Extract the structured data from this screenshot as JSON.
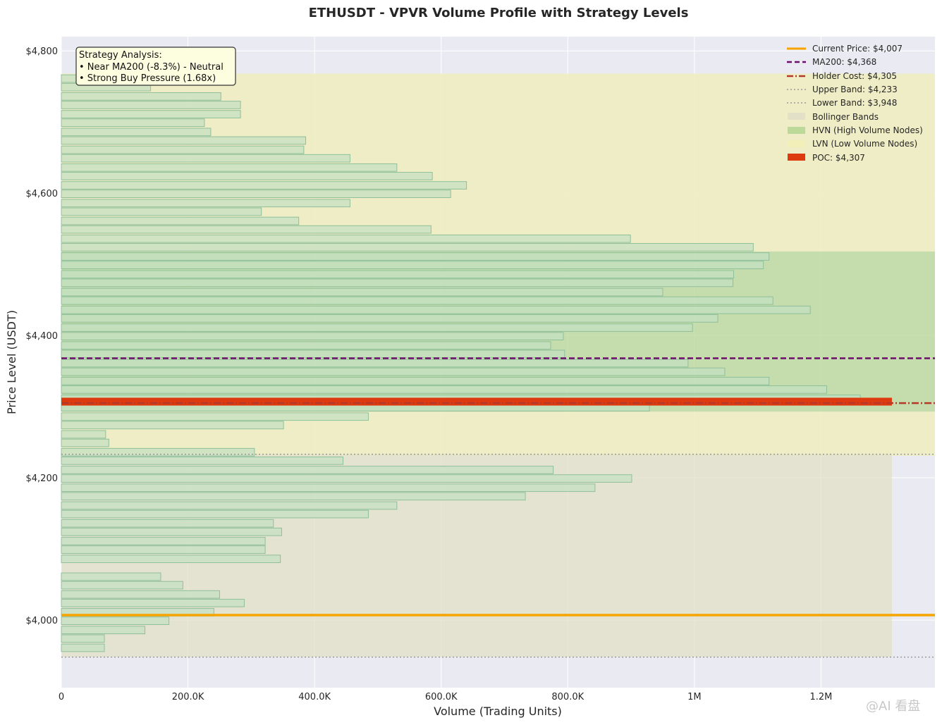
{
  "chart_data": {
    "type": "bar",
    "orientation": "horizontal",
    "title": "ETHUSDT - VPVR Volume Profile with Strategy Levels",
    "xlabel": "Volume (Trading Units)",
    "ylabel": "Price Level (USDT)",
    "xlim": [
      0,
      1380000
    ],
    "ylim": [
      3905,
      4820
    ],
    "x_ticks": [
      {
        "value": 0,
        "label": "0"
      },
      {
        "value": 200000,
        "label": "200.0K"
      },
      {
        "value": 400000,
        "label": "400.0K"
      },
      {
        "value": 600000,
        "label": "600.0K"
      },
      {
        "value": 800000,
        "label": "800.0K"
      },
      {
        "value": 1000000,
        "label": "1M"
      },
      {
        "value": 1200000,
        "label": "1.2M"
      }
    ],
    "y_ticks": [
      {
        "value": 4000,
        "label": "$4,000"
      },
      {
        "value": 4200,
        "label": "$4,200"
      },
      {
        "value": 4400,
        "label": "$4,400"
      },
      {
        "value": 4600,
        "label": "$4,600"
      },
      {
        "value": 4800,
        "label": "$4,800"
      }
    ],
    "grid": true,
    "bin_size": 12.5,
    "bins": [
      {
        "price": 3961,
        "volume": 68000
      },
      {
        "price": 3974,
        "volume": 68000
      },
      {
        "price": 3986,
        "volume": 132000
      },
      {
        "price": 3999,
        "volume": 170000
      },
      {
        "price": 4011,
        "volume": 241000
      },
      {
        "price": 4024,
        "volume": 289000
      },
      {
        "price": 4036,
        "volume": 250000
      },
      {
        "price": 4049,
        "volume": 192000
      },
      {
        "price": 4061,
        "volume": 157000
      },
      {
        "price": 4086,
        "volume": 346000
      },
      {
        "price": 4099,
        "volume": 322000
      },
      {
        "price": 4111,
        "volume": 322000
      },
      {
        "price": 4124,
        "volume": 348000
      },
      {
        "price": 4136,
        "volume": 335000
      },
      {
        "price": 4149,
        "volume": 485000
      },
      {
        "price": 4161,
        "volume": 530000
      },
      {
        "price": 4174,
        "volume": 733000
      },
      {
        "price": 4186,
        "volume": 843000
      },
      {
        "price": 4199,
        "volume": 901000
      },
      {
        "price": 4211,
        "volume": 777000
      },
      {
        "price": 4224,
        "volume": 445000
      },
      {
        "price": 4236,
        "volume": 305000
      },
      {
        "price": 4249,
        "volume": 75000
      },
      {
        "price": 4261,
        "volume": 70000
      },
      {
        "price": 4274,
        "volume": 351000
      },
      {
        "price": 4286,
        "volume": 485000
      },
      {
        "price": 4299,
        "volume": 929000
      },
      {
        "price": 4311,
        "volume": 1262000
      },
      {
        "price": 4324,
        "volume": 1209000
      },
      {
        "price": 4336,
        "volume": 1118000
      },
      {
        "price": 4349,
        "volume": 1048000
      },
      {
        "price": 4361,
        "volume": 990000
      },
      {
        "price": 4374,
        "volume": 795000
      },
      {
        "price": 4386,
        "volume": 773000
      },
      {
        "price": 4399,
        "volume": 793000
      },
      {
        "price": 4411,
        "volume": 997000
      },
      {
        "price": 4424,
        "volume": 1037000
      },
      {
        "price": 4436,
        "volume": 1183000
      },
      {
        "price": 4449,
        "volume": 1124000
      },
      {
        "price": 4461,
        "volume": 950000
      },
      {
        "price": 4474,
        "volume": 1061000
      },
      {
        "price": 4486,
        "volume": 1062000
      },
      {
        "price": 4499,
        "volume": 1109000
      },
      {
        "price": 4511,
        "volume": 1118000
      },
      {
        "price": 4524,
        "volume": 1093000
      },
      {
        "price": 4536,
        "volume": 899000
      },
      {
        "price": 4549,
        "volume": 584000
      },
      {
        "price": 4561,
        "volume": 375000
      },
      {
        "price": 4574,
        "volume": 316000
      },
      {
        "price": 4586,
        "volume": 456000
      },
      {
        "price": 4599,
        "volume": 615000
      },
      {
        "price": 4611,
        "volume": 640000
      },
      {
        "price": 4624,
        "volume": 586000
      },
      {
        "price": 4636,
        "volume": 530000
      },
      {
        "price": 4649,
        "volume": 456000
      },
      {
        "price": 4661,
        "volume": 383000
      },
      {
        "price": 4674,
        "volume": 386000
      },
      {
        "price": 4686,
        "volume": 236000
      },
      {
        "price": 4699,
        "volume": 226000
      },
      {
        "price": 4711,
        "volume": 283000
      },
      {
        "price": 4724,
        "volume": 283000
      },
      {
        "price": 4736,
        "volume": 252000
      },
      {
        "price": 4749,
        "volume": 141000
      },
      {
        "price": 4761,
        "volume": 65000
      }
    ],
    "hvn_zones": [
      {
        "from": 4293,
        "to": 4518
      }
    ],
    "lvn_zones": [
      {
        "from": 4518,
        "to": 4768
      },
      {
        "from": 4231,
        "to": 4293
      }
    ],
    "bollinger_bands": {
      "upper": 4233,
      "lower": 3948
    },
    "levels": {
      "current_price": 4007,
      "ma200": 4368,
      "holder_cost": 4305,
      "upper_band": 4233,
      "lower_band": 3948,
      "poc": 4307,
      "poc_volume": 1312000
    },
    "colors": {
      "current_price": "#f5a400",
      "ma200": "#6b0f6b",
      "holder_cost": "#b5392a",
      "bands": "#9a9a9a",
      "bollinger_fill": "#e2e0c6",
      "hvn_fill": "#bcd99a",
      "lvn_fill": "#efedc2",
      "poc": "#de3a10",
      "bar_fill": "#c3e0c3",
      "bar_edge": "#8fbf9a",
      "plot_bg": "#eaeaf2"
    },
    "legend": {
      "position": "top-right",
      "entries": [
        {
          "key": "current_price",
          "label": "Current Price: $4,007"
        },
        {
          "key": "ma200",
          "label": "MA200: $4,368"
        },
        {
          "key": "holder_cost",
          "label": "Holder Cost: $4,305"
        },
        {
          "key": "upper_band",
          "label": "Upper Band: $4,233"
        },
        {
          "key": "lower_band",
          "label": "Lower Band: $3,948"
        },
        {
          "key": "bollinger",
          "label": "Bollinger Bands"
        },
        {
          "key": "hvn",
          "label": "HVN (High Volume Nodes)"
        },
        {
          "key": "lvn",
          "label": "LVN (Low Volume Nodes)"
        },
        {
          "key": "poc",
          "label": "POC: $4,307"
        }
      ]
    },
    "annotation": {
      "position": "top-left",
      "lines": [
        "Strategy Analysis:",
        "• Near MA200 (-8.3%) - Neutral",
        "• Strong Buy Pressure (1.68x)"
      ]
    }
  },
  "watermark": "@AI 看盘"
}
